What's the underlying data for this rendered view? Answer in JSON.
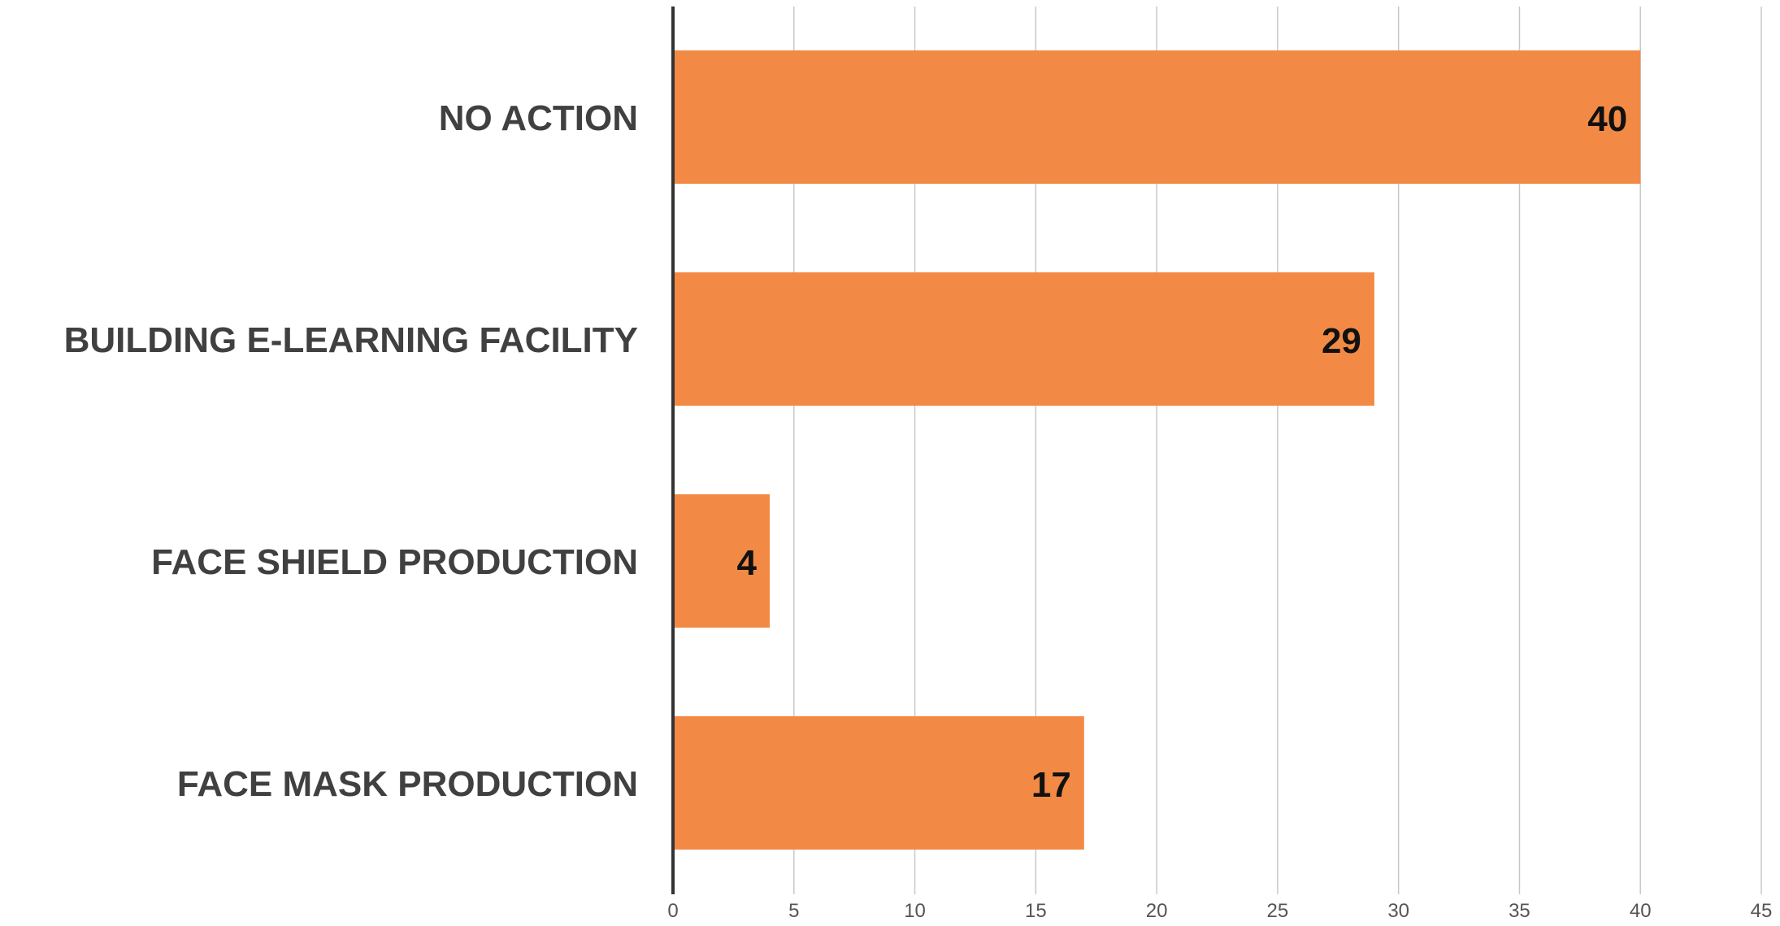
{
  "chart_data": {
    "type": "bar",
    "orientation": "horizontal",
    "title": "",
    "xlabel": "",
    "ylabel": "",
    "categories": [
      "NO ACTION",
      "BUILDING E-LEARNING FACILITY",
      "FACE SHIELD PRODUCTION",
      "FACE MASK PRODUCTION"
    ],
    "values": [
      40,
      29,
      4,
      17
    ],
    "data_labels": [
      "40",
      "29",
      "4",
      "17"
    ],
    "xlim": [
      0,
      45
    ],
    "xticks": [
      0,
      5,
      10,
      15,
      20,
      25,
      30,
      35,
      40,
      45
    ],
    "xtick_labels": [
      "0",
      "5",
      "10",
      "15",
      "20",
      "25",
      "30",
      "35",
      "40",
      "45"
    ],
    "grid": "vertical",
    "legend": "none"
  },
  "colors": {
    "bar": "#F28A45",
    "category_text": "#404040",
    "value_text": "#111111",
    "tick_text": "#555555",
    "gridline": "#C8C8C8",
    "axis": "#333333"
  }
}
